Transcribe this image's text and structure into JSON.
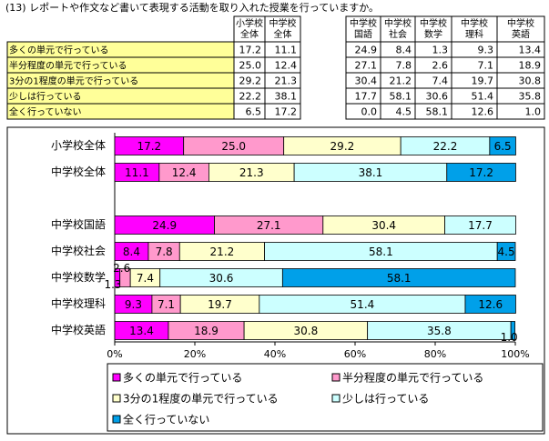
{
  "table": {
    "title": "(13) レポートや作文など書いて表現する活動を取り入れた授業を行っていますか。",
    "headers": [
      [
        "小学校",
        "全体"
      ],
      [
        "中学校",
        "全体"
      ],
      null,
      [
        "中学校",
        "国語"
      ],
      [
        "中学校",
        "社会"
      ],
      [
        "中学校",
        "数学"
      ],
      [
        "中学校",
        "理科"
      ],
      [
        "中学校",
        "英語"
      ]
    ],
    "rows": [
      {
        "label": "多くの単元で行っている",
        "cells": [
          "17.2",
          "11.1",
          null,
          "24.9",
          "8.4",
          "1.3",
          "9.3",
          "13.4"
        ]
      },
      {
        "label": "半分程度の単元で行っている",
        "cells": [
          "25.0",
          "12.4",
          null,
          "27.1",
          "7.8",
          "2.6",
          "7.1",
          "18.9"
        ]
      },
      {
        "label": "3分の1程度の単元で行っている",
        "cells": [
          "29.2",
          "21.3",
          null,
          "30.4",
          "21.2",
          "7.4",
          "19.7",
          "30.8"
        ]
      },
      {
        "label": "少しは行っている",
        "cells": [
          "22.2",
          "38.1",
          null,
          "17.7",
          "58.1",
          "30.6",
          "51.4",
          "35.8"
        ]
      },
      {
        "label": "全く行っていない",
        "cells": [
          "6.5",
          "17.2",
          null,
          "0.0",
          "4.5",
          "58.1",
          "12.6",
          "1.0"
        ]
      }
    ]
  },
  "chart_data": {
    "type": "bar",
    "orientation": "horizontal",
    "stacked": true,
    "categories": [
      "小学校全体",
      "中学校全体",
      null,
      "中学校国語",
      "中学校社会",
      "中学校数学",
      "中学校理科",
      "中学校英語"
    ],
    "series": [
      {
        "name": "多くの単元で行っている",
        "color": "#ff00ff",
        "values": [
          17.2,
          11.1,
          null,
          24.9,
          8.4,
          1.3,
          9.3,
          13.4
        ]
      },
      {
        "name": "半分程度の単元で行っている",
        "color": "#ff99cc",
        "values": [
          25.0,
          12.4,
          null,
          27.1,
          7.8,
          2.6,
          7.1,
          18.9
        ],
        "value_labels": [
          "25.0",
          "12.4",
          null,
          "27.1",
          "7.8",
          "2.6",
          "7.1",
          "18.9"
        ]
      },
      {
        "name": "3分の1程度の単元で行っている",
        "color": "#ffffcc",
        "values": [
          29.2,
          21.3,
          null,
          30.4,
          21.2,
          7.4,
          19.7,
          30.8
        ]
      },
      {
        "name": "少しは行っている",
        "color": "#ccffff",
        "values": [
          22.2,
          38.1,
          null,
          17.7,
          58.1,
          30.6,
          51.4,
          35.8
        ]
      },
      {
        "name": "全く行っていない",
        "color": "#00a0e9",
        "values": [
          6.5,
          17.2,
          null,
          0.0,
          4.5,
          58.1,
          12.6,
          1.0
        ],
        "value_labels": [
          "6.5",
          "17.2",
          null,
          null,
          "4.5",
          "58.1",
          "12.6",
          "1.0"
        ]
      }
    ],
    "xlim": [
      0,
      100
    ],
    "xticks": [
      {
        "value": 0,
        "label": "0%"
      },
      {
        "value": 20,
        "label": "20%"
      },
      {
        "value": 40,
        "label": "40%"
      },
      {
        "value": 60,
        "label": "60%"
      },
      {
        "value": 80,
        "label": "80%"
      },
      {
        "value": 100,
        "label": "100%"
      }
    ],
    "legend": "bottom"
  }
}
